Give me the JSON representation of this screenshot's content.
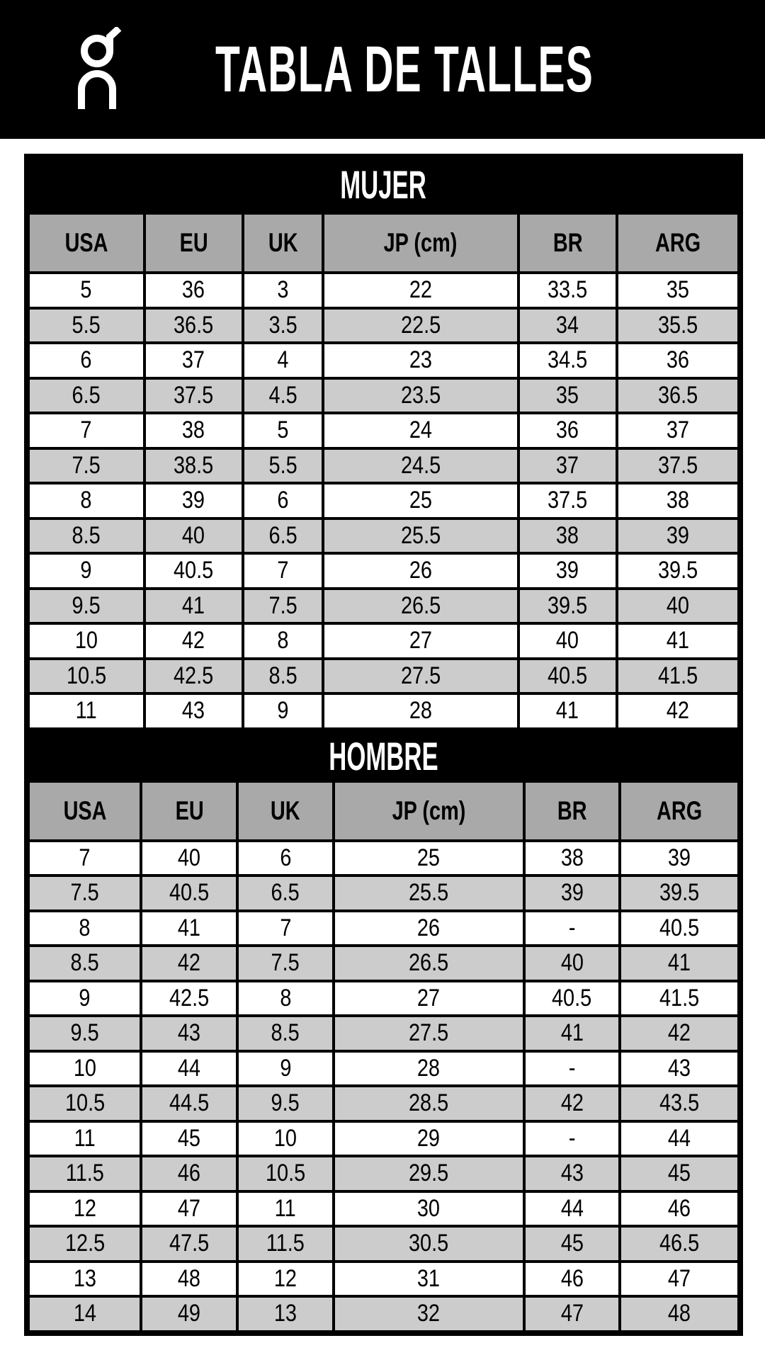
{
  "header": {
    "title": "TABLA DE TALLES",
    "logo": "On",
    "logo_icon": "on-brand-logo"
  },
  "colors": {
    "header_bg": "#000000",
    "column_header_bg": "#a9a9a9",
    "alt_row_bg": "#cccccc",
    "row_bg": "#ffffff"
  },
  "columns": [
    "USA",
    "EU",
    "UK",
    "JP (cm)",
    "BR",
    "ARG"
  ],
  "sections": [
    {
      "title": "MUJER",
      "rows": [
        [
          "5",
          "36",
          "3",
          "22",
          "33.5",
          "35"
        ],
        [
          "5.5",
          "36.5",
          "3.5",
          "22.5",
          "34",
          "35.5"
        ],
        [
          "6",
          "37",
          "4",
          "23",
          "34.5",
          "36"
        ],
        [
          "6.5",
          "37.5",
          "4.5",
          "23.5",
          "35",
          "36.5"
        ],
        [
          "7",
          "38",
          "5",
          "24",
          "36",
          "37"
        ],
        [
          "7.5",
          "38.5",
          "5.5",
          "24.5",
          "37",
          "37.5"
        ],
        [
          "8",
          "39",
          "6",
          "25",
          "37.5",
          "38"
        ],
        [
          "8.5",
          "40",
          "6.5",
          "25.5",
          "38",
          "39"
        ],
        [
          "9",
          "40.5",
          "7",
          "26",
          "39",
          "39.5"
        ],
        [
          "9.5",
          "41",
          "7.5",
          "26.5",
          "39.5",
          "40"
        ],
        [
          "10",
          "42",
          "8",
          "27",
          "40",
          "41"
        ],
        [
          "10.5",
          "42.5",
          "8.5",
          "27.5",
          "40.5",
          "41.5"
        ],
        [
          "11",
          "43",
          "9",
          "28",
          "41",
          "42"
        ]
      ]
    },
    {
      "title": "HOMBRE",
      "rows": [
        [
          "7",
          "40",
          "6",
          "25",
          "38",
          "39"
        ],
        [
          "7.5",
          "40.5",
          "6.5",
          "25.5",
          "39",
          "39.5"
        ],
        [
          "8",
          "41",
          "7",
          "26",
          "-",
          "40.5"
        ],
        [
          "8.5",
          "42",
          "7.5",
          "26.5",
          "40",
          "41"
        ],
        [
          "9",
          "42.5",
          "8",
          "27",
          "40.5",
          "41.5"
        ],
        [
          "9.5",
          "43",
          "8.5",
          "27.5",
          "41",
          "42"
        ],
        [
          "10",
          "44",
          "9",
          "28",
          "-",
          "43"
        ],
        [
          "10.5",
          "44.5",
          "9.5",
          "28.5",
          "42",
          "43.5"
        ],
        [
          "11",
          "45",
          "10",
          "29",
          "-",
          "44"
        ],
        [
          "11.5",
          "46",
          "10.5",
          "29.5",
          "43",
          "45"
        ],
        [
          "12",
          "47",
          "11",
          "30",
          "44",
          "46"
        ],
        [
          "12.5",
          "47.5",
          "11.5",
          "30.5",
          "45",
          "46.5"
        ],
        [
          "13",
          "48",
          "12",
          "31",
          "46",
          "47"
        ],
        [
          "14",
          "49",
          "13",
          "32",
          "47",
          "48"
        ]
      ]
    }
  ]
}
